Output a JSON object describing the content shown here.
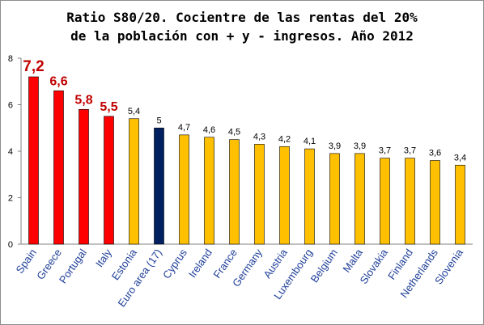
{
  "chart_data": {
    "type": "bar",
    "title_lines": [
      "Ratio S80/20. Cocientre de las rentas del 20%",
      "de la población con + y - ingresos. Año 2012"
    ],
    "categories": [
      "Spain",
      "Greece",
      "Portugal",
      "Italy",
      "Estonia",
      "Euro area (17)",
      "Cyprus",
      "Ireland",
      "France",
      "Germany",
      "Austria",
      "Luxembourg",
      "Belgium",
      "Malta",
      "Slovakia",
      "Finland",
      "Netherlands",
      "Slovenia"
    ],
    "values": [
      7.2,
      6.6,
      5.8,
      5.5,
      5.4,
      5.0,
      4.7,
      4.6,
      4.5,
      4.3,
      4.2,
      4.1,
      3.9,
      3.9,
      3.7,
      3.7,
      3.6,
      3.4
    ],
    "data_labels": [
      "7,2",
      "6,6",
      "5,8",
      "5,5",
      "5,4",
      "5",
      "4,7",
      "4,6",
      "4,5",
      "4,3",
      "4,2",
      "4,1",
      "3,9",
      "3,9",
      "3,7",
      "3,7",
      "3,6",
      "3,4"
    ],
    "highlighted_labels": [
      0,
      1,
      2,
      3
    ],
    "bar_colors": [
      "#ff0000",
      "#ff0000",
      "#ff0000",
      "#ff0000",
      "#ffc000",
      "#002060",
      "#ffc000",
      "#ffc000",
      "#ffc000",
      "#ffc000",
      "#ffc000",
      "#ffc000",
      "#ffc000",
      "#ffc000",
      "#ffc000",
      "#ffc000",
      "#ffc000",
      "#ffc000"
    ],
    "colors": {
      "highlight_red": "#ff0000",
      "highlight_label": "#c00000",
      "others": "#ffc000",
      "euro_area": "#002060",
      "category_text": "#1f3f99"
    },
    "ylim": [
      0,
      8
    ],
    "yticks": [
      0,
      2,
      4,
      6,
      8
    ],
    "xlabel": "",
    "ylabel": "",
    "grid": false,
    "legend": "none"
  }
}
